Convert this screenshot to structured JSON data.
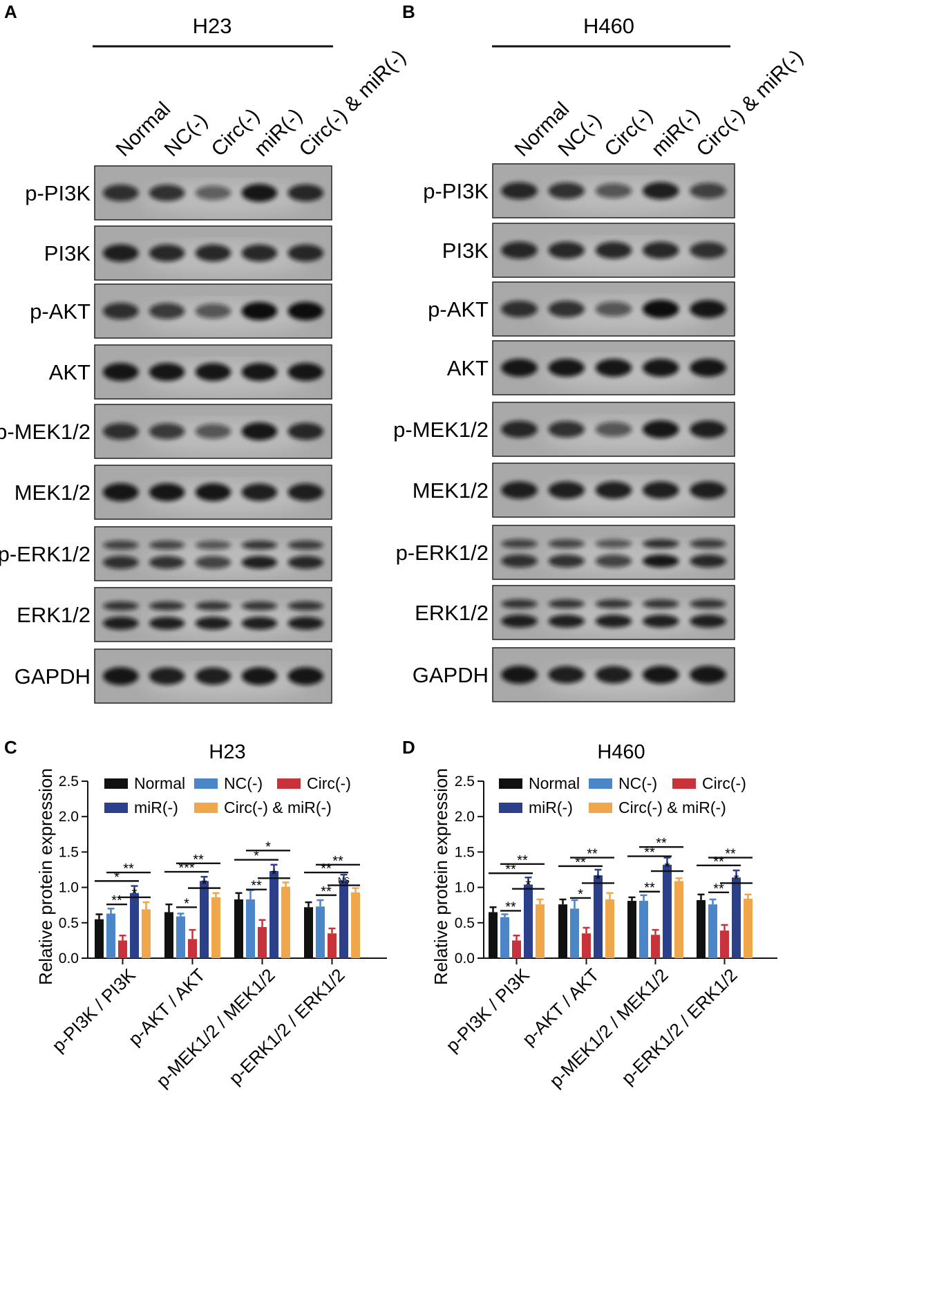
{
  "blots": {
    "panel_a": {
      "letter": "A",
      "cell_line": "H23",
      "lanes": [
        "Normal",
        "NC(-)",
        "Circ(-)",
        "miR(-)",
        "Circ(-) & miR(-)"
      ],
      "rows": [
        {
          "label": "p-PI3K",
          "intensity": [
            0.8,
            0.8,
            0.55,
            0.95,
            0.85
          ]
        },
        {
          "label": "PI3K",
          "intensity": [
            0.9,
            0.85,
            0.85,
            0.85,
            0.85
          ]
        },
        {
          "label": "p-AKT",
          "intensity": [
            0.8,
            0.75,
            0.6,
            1.0,
            1.0
          ]
        },
        {
          "label": "AKT",
          "intensity": [
            0.95,
            0.95,
            0.95,
            0.95,
            0.95
          ]
        },
        {
          "label": "p-MEK1/2",
          "intensity": [
            0.8,
            0.75,
            0.6,
            0.95,
            0.85
          ]
        },
        {
          "label": "MEK1/2",
          "intensity": [
            0.95,
            0.95,
            0.95,
            0.9,
            0.9
          ]
        },
        {
          "label": "p-ERK1/2",
          "intensity": [
            0.8,
            0.8,
            0.7,
            0.9,
            0.85
          ],
          "double": true
        },
        {
          "label": "ERK1/2",
          "intensity": [
            0.9,
            0.9,
            0.9,
            0.9,
            0.9
          ],
          "double": true
        },
        {
          "label": "GAPDH",
          "intensity": [
            0.95,
            0.9,
            0.9,
            0.95,
            0.95
          ]
        }
      ]
    },
    "panel_b": {
      "letter": "B",
      "cell_line": "H460",
      "lanes": [
        "Normal",
        "NC(-)",
        "Circ(-)",
        "miR(-)",
        "Circ(-) & miR(-)"
      ],
      "rows": [
        {
          "label": "p-PI3K",
          "intensity": [
            0.85,
            0.8,
            0.6,
            0.9,
            0.7
          ]
        },
        {
          "label": "PI3K",
          "intensity": [
            0.85,
            0.85,
            0.85,
            0.85,
            0.8
          ]
        },
        {
          "label": "p-AKT",
          "intensity": [
            0.8,
            0.8,
            0.6,
            1.0,
            0.95
          ]
        },
        {
          "label": "AKT",
          "intensity": [
            0.95,
            0.95,
            0.95,
            0.95,
            0.95
          ]
        },
        {
          "label": "p-MEK1/2",
          "intensity": [
            0.85,
            0.8,
            0.6,
            0.95,
            0.9
          ]
        },
        {
          "label": "MEK1/2",
          "intensity": [
            0.9,
            0.9,
            0.9,
            0.9,
            0.9
          ]
        },
        {
          "label": "p-ERK1/2",
          "intensity": [
            0.8,
            0.8,
            0.7,
            0.95,
            0.85
          ],
          "double": true
        },
        {
          "label": "ERK1/2",
          "intensity": [
            0.9,
            0.9,
            0.9,
            0.9,
            0.9
          ],
          "double": true
        },
        {
          "label": "GAPDH",
          "intensity": [
            0.95,
            0.9,
            0.9,
            0.95,
            0.95
          ]
        }
      ]
    }
  },
  "chart_data": [
    {
      "panel": "C",
      "type": "bar",
      "title": "H23",
      "ylabel": "Relative protein expression",
      "xlabel": "",
      "ylim": [
        0,
        2.5
      ],
      "yticks": [
        "0.0",
        "0.5",
        "1.0",
        "1.5",
        "2.0",
        "2.5"
      ],
      "legend_position": "top",
      "categories": [
        "p-PI3K / PI3K",
        "p-AKT / AKT",
        "p-MEK1/2 / MEK1/2",
        "p-ERK1/2 / ERK1/2"
      ],
      "series": [
        {
          "name": "Normal",
          "color": "#111111",
          "values": [
            0.55,
            0.65,
            0.83,
            0.72
          ],
          "errors": [
            0.07,
            0.11,
            0.09,
            0.07
          ]
        },
        {
          "name": "NC(-)",
          "color": "#4a86c8",
          "values": [
            0.63,
            0.59,
            0.83,
            0.73
          ],
          "errors": [
            0.07,
            0.04,
            0.13,
            0.09
          ]
        },
        {
          "name": "Circ(-)",
          "color": "#c8323b",
          "values": [
            0.25,
            0.27,
            0.44,
            0.35
          ],
          "errors": [
            0.07,
            0.13,
            0.1,
            0.07
          ]
        },
        {
          "name": "miR(-)",
          "color": "#2c3f8a",
          "values": [
            0.92,
            1.09,
            1.23,
            1.1
          ],
          "errors": [
            0.1,
            0.06,
            0.09,
            0.08
          ]
        },
        {
          "name": "Circ(-) & miR(-)",
          "color": "#f0a64a",
          "values": [
            0.69,
            0.86,
            1.01,
            0.93
          ],
          "errors": [
            0.1,
            0.06,
            0.06,
            0.06
          ]
        }
      ],
      "significance": [
        [
          {
            "from": 1,
            "to": 2,
            "label": "**",
            "y": 0.76
          },
          {
            "from": 0,
            "to": 3,
            "label": "*",
            "y": 1.09
          },
          {
            "from": 2,
            "to": 4,
            "label": "*",
            "y": 0.86
          },
          {
            "from": 1,
            "to": 4,
            "label": "**",
            "y": 1.21
          }
        ],
        [
          {
            "from": 1,
            "to": 2,
            "label": "*",
            "y": 0.72
          },
          {
            "from": 0,
            "to": 3,
            "label": "***",
            "y": 1.22
          },
          {
            "from": 2,
            "to": 4,
            "label": "*",
            "y": 0.99
          },
          {
            "from": 1,
            "to": 4,
            "label": "**",
            "y": 1.34
          }
        ],
        [
          {
            "from": 1,
            "to": 2,
            "label": "**",
            "y": 0.97
          },
          {
            "from": 0,
            "to": 3,
            "label": "*",
            "y": 1.39
          },
          {
            "from": 2,
            "to": 4,
            "label": "*",
            "y": 1.13
          },
          {
            "from": 1,
            "to": 4,
            "label": "*",
            "y": 1.52
          }
        ],
        [
          {
            "from": 1,
            "to": 2,
            "label": "**",
            "y": 0.89
          },
          {
            "from": 0,
            "to": 3,
            "label": "**",
            "y": 1.21
          },
          {
            "from": 2,
            "to": 4,
            "label": "NS",
            "y": 1.03
          },
          {
            "from": 1,
            "to": 4,
            "label": "**",
            "y": 1.32
          }
        ]
      ]
    },
    {
      "panel": "D",
      "type": "bar",
      "title": "H460",
      "ylabel": "Relative protein expression",
      "xlabel": "",
      "ylim": [
        0,
        2.5
      ],
      "yticks": [
        "0.0",
        "0.5",
        "1.0",
        "1.5",
        "2.0",
        "2.5"
      ],
      "legend_position": "top",
      "categories": [
        "p-PI3K / PI3K",
        "p-AKT / AKT",
        "p-MEK1/2 / MEK1/2",
        "p-ERK1/2 / ERK1/2"
      ],
      "series": [
        {
          "name": "Normal",
          "color": "#111111",
          "values": [
            0.65,
            0.76,
            0.81,
            0.82
          ],
          "errors": [
            0.07,
            0.07,
            0.05,
            0.08
          ]
        },
        {
          "name": "NC(-)",
          "color": "#4a86c8",
          "values": [
            0.58,
            0.7,
            0.81,
            0.76
          ],
          "errors": [
            0.04,
            0.12,
            0.08,
            0.07
          ]
        },
        {
          "name": "Circ(-)",
          "color": "#c8323b",
          "values": [
            0.25,
            0.35,
            0.33,
            0.39
          ],
          "errors": [
            0.07,
            0.08,
            0.07,
            0.08
          ]
        },
        {
          "name": "miR(-)",
          "color": "#2c3f8a",
          "values": [
            1.04,
            1.17,
            1.32,
            1.14
          ],
          "errors": [
            0.1,
            0.08,
            0.1,
            0.1
          ]
        },
        {
          "name": "Circ(-) & miR(-)",
          "color": "#f0a64a",
          "values": [
            0.76,
            0.83,
            1.09,
            0.84
          ],
          "errors": [
            0.07,
            0.09,
            0.04,
            0.06
          ]
        }
      ],
      "significance": [
        [
          {
            "from": 1,
            "to": 2,
            "label": "**",
            "y": 0.67
          },
          {
            "from": 0,
            "to": 3,
            "label": "**",
            "y": 1.2
          },
          {
            "from": 2,
            "to": 4,
            "label": "*",
            "y": 0.98
          },
          {
            "from": 1,
            "to": 4,
            "label": "**",
            "y": 1.33
          }
        ],
        [
          {
            "from": 1,
            "to": 2,
            "label": "*",
            "y": 0.85
          },
          {
            "from": 0,
            "to": 3,
            "label": "**",
            "y": 1.3
          },
          {
            "from": 2,
            "to": 4,
            "label": "*",
            "y": 1.06
          },
          {
            "from": 1,
            "to": 4,
            "label": "**",
            "y": 1.42
          }
        ],
        [
          {
            "from": 1,
            "to": 2,
            "label": "**",
            "y": 0.94
          },
          {
            "from": 0,
            "to": 3,
            "label": "**",
            "y": 1.44
          },
          {
            "from": 2,
            "to": 4,
            "label": "*",
            "y": 1.23
          },
          {
            "from": 1,
            "to": 4,
            "label": "**",
            "y": 1.57
          }
        ],
        [
          {
            "from": 1,
            "to": 2,
            "label": "**",
            "y": 0.93
          },
          {
            "from": 0,
            "to": 3,
            "label": "**",
            "y": 1.31
          },
          {
            "from": 2,
            "to": 4,
            "label": "*",
            "y": 1.06
          },
          {
            "from": 1,
            "to": 4,
            "label": "**",
            "y": 1.42
          }
        ]
      ]
    }
  ]
}
